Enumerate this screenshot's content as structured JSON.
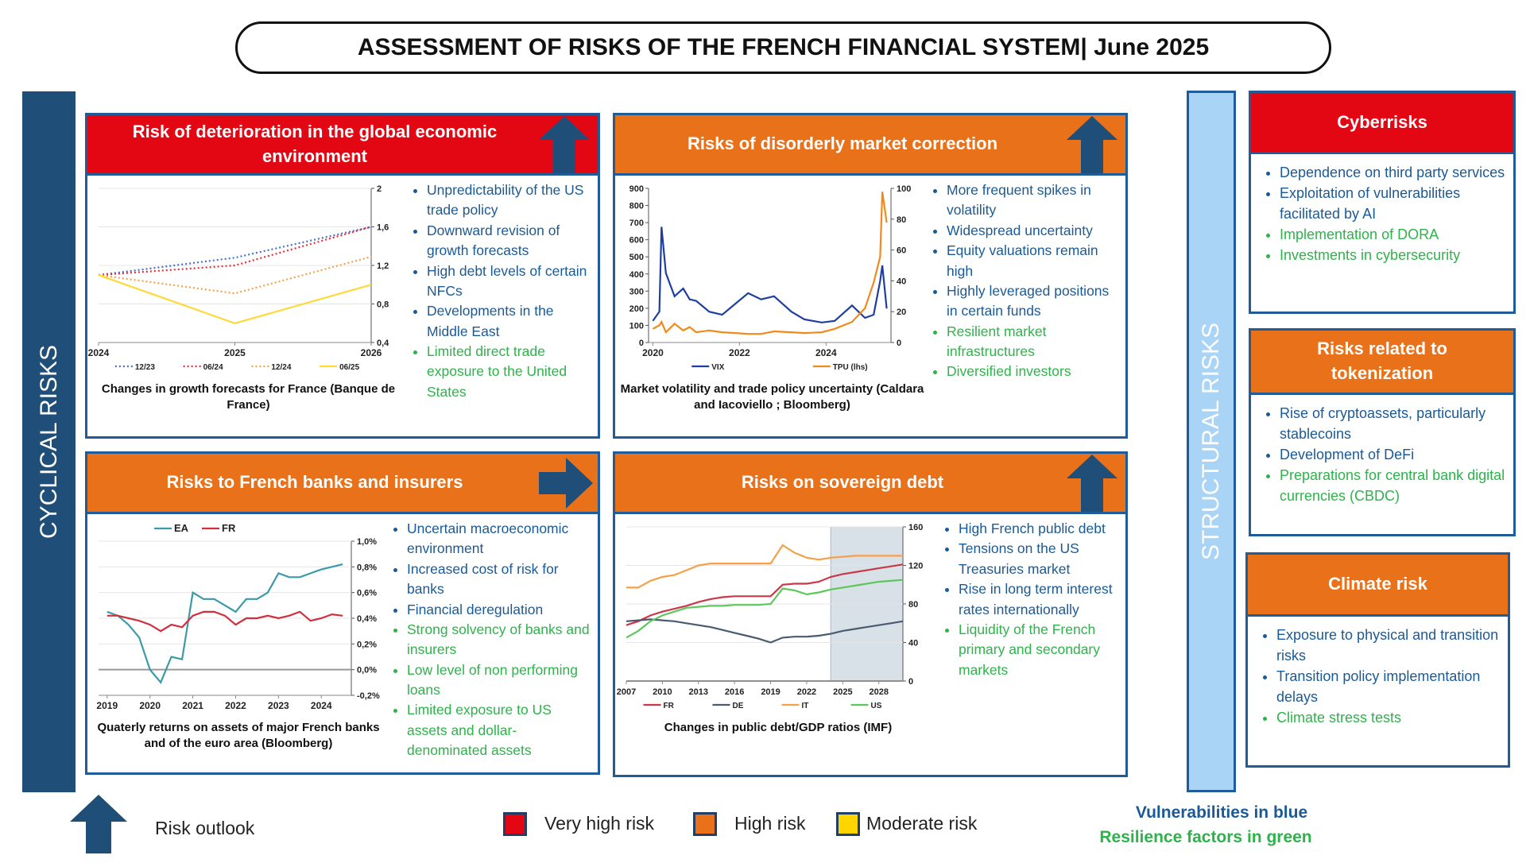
{
  "header": {
    "title": "ASSESSMENT OF RISKS OF THE FRENCH FINANCIAL SYSTEM| June 2025"
  },
  "sidebars": {
    "cyclical": "CYCLICAL RISKS",
    "structural": "STRUCTURAL RISKS"
  },
  "kinds": {
    "vulnerability": {
      "label": "Vulnerabilities in blue",
      "color": "#1a5a96"
    },
    "resilience": {
      "label": "Resilience factors in green",
      "color": "#2db34a"
    }
  },
  "levels": [
    {
      "label": "Very high risk",
      "color": "#e30613"
    },
    {
      "label": "High risk",
      "color": "#e8711a"
    },
    {
      "label": "Moderate risk",
      "color": "#ffd500"
    }
  ],
  "outlook_label": "Risk outlook",
  "panels": [
    {
      "title": "Risk of deterioration in the global economic environment",
      "color": "#e30613",
      "outlook": "up",
      "chart": {
        "type": "line",
        "x": [
          2024,
          2025,
          2026
        ],
        "xlim": [
          2024,
          2026
        ],
        "xticks": [
          2024,
          2025,
          2026
        ],
        "ylim": [
          0.4,
          2
        ],
        "yticks": [
          {
            "value": 0.4,
            "label": "0,4"
          },
          {
            "value": 0.8,
            "label": "0,8"
          },
          {
            "value": 1.2,
            "label": "1,2"
          },
          {
            "value": 1.6,
            "label": "1,6"
          },
          2
        ],
        "y_axis_side": "right",
        "grid": true,
        "legend": "bottom",
        "series": [
          {
            "name": "12/23",
            "color": "#4472c4",
            "dash": true,
            "values": [
              1.1,
              1.28,
              1.6
            ]
          },
          {
            "name": "06/24",
            "color": "#e0303a",
            "dash": true,
            "values": [
              1.1,
              1.2,
              1.6
            ]
          },
          {
            "name": "12/24",
            "color": "#f5a04a",
            "dash": true,
            "values": [
              1.1,
              0.91,
              1.29
            ]
          },
          {
            "name": "06/25",
            "color": "#ffd93a",
            "dash": false,
            "values": [
              1.1,
              0.6,
              1.0
            ]
          }
        ]
      },
      "caption": "Changes in growth forecasts for France (Banque de France)",
      "items": [
        {
          "text": "Unpredictability of the US trade policy",
          "kind": "vulnerability"
        },
        {
          "text": "Downward revision of growth forecasts",
          "kind": "vulnerability"
        },
        {
          "text": "High debt levels of certain NFCs",
          "kind": "vulnerability"
        },
        {
          "text": "Developments in the Middle East",
          "kind": "vulnerability"
        },
        {
          "text": "Limited direct trade exposure to the United States",
          "kind": "resilience"
        }
      ]
    },
    {
      "title": "Risks of disorderly market correction",
      "color": "#e8711a",
      "outlook": "up",
      "chart": {
        "type": "line",
        "x": [
          2020.0,
          2020.15,
          2020.2,
          2020.3,
          2020.5,
          2020.7,
          2020.85,
          2021.0,
          2021.3,
          2021.6,
          2021.9,
          2022.2,
          2022.5,
          2022.8,
          2023.2,
          2023.5,
          2023.9,
          2024.2,
          2024.6,
          2024.9,
          2025.1,
          2025.25,
          2025.3,
          2025.4
        ],
        "xlim": [
          2019.9,
          2025.5
        ],
        "xticks": [
          2020,
          2022,
          2024
        ],
        "ylim": [
          0,
          900
        ],
        "yticks": [
          0,
          100,
          200,
          300,
          400,
          500,
          600,
          700,
          800,
          900
        ],
        "y2lim": [
          0,
          100
        ],
        "y2ticks": [
          0,
          20,
          40,
          60,
          80,
          100
        ],
        "y_axis_side": "left",
        "grid": false,
        "legend": "bottom",
        "series": [
          {
            "name": "VIX",
            "color": "#1f3fa0",
            "axis": "y2",
            "dash": false,
            "values": [
              14,
              20,
              75,
              45,
              30,
              35,
              28,
              27,
              20,
              18,
              25,
              32,
              28,
              30,
              20,
              15,
              13,
              14,
              24,
              16,
              18,
              40,
              50,
              22
            ]
          },
          {
            "name": "TPU (lhs)",
            "color": "#f08a1c",
            "dash": false,
            "values": [
              80,
              100,
              120,
              60,
              110,
              70,
              90,
              60,
              70,
              60,
              55,
              50,
              50,
              65,
              60,
              55,
              60,
              80,
              120,
              200,
              350,
              500,
              880,
              700
            ]
          }
        ]
      },
      "caption": "Market volatility and trade policy uncertainty (Caldara and Iacoviello ; Bloomberg)",
      "items": [
        {
          "text": "More frequent spikes in volatility",
          "kind": "vulnerability"
        },
        {
          "text": "Widespread uncertainty",
          "kind": "vulnerability"
        },
        {
          "text": "Equity valuations remain high",
          "kind": "vulnerability"
        },
        {
          "text": "Highly leveraged positions in certain funds",
          "kind": "vulnerability"
        },
        {
          "text": "Resilient market infrastructures",
          "kind": "resilience"
        },
        {
          "text": "Diversified investors",
          "kind": "resilience"
        }
      ]
    },
    {
      "title": "Risks to French banks and insurers",
      "color": "#e8711a",
      "outlook": "right",
      "chart": {
        "type": "line",
        "x": [
          2019,
          2019.25,
          2019.5,
          2019.75,
          2020,
          2020.25,
          2020.5,
          2020.75,
          2021,
          2021.25,
          2021.5,
          2021.75,
          2022,
          2022.25,
          2022.5,
          2022.75,
          2023,
          2023.25,
          2023.5,
          2023.75,
          2024,
          2024.25,
          2024.5
        ],
        "xlim": [
          2018.8,
          2024.7
        ],
        "xticks": [
          2019,
          2020,
          2021,
          2022,
          2023,
          2024
        ],
        "ylim": [
          -0.2,
          1.0
        ],
        "yticks": [
          {
            "value": -0.2,
            "label": "-0,2%"
          },
          {
            "value": 0,
            "label": "0,0%"
          },
          {
            "value": 0.2,
            "label": "0,2%"
          },
          {
            "value": 0.4,
            "label": "0,4%"
          },
          {
            "value": 0.6,
            "label": "0,6%"
          },
          {
            "value": 0.8,
            "label": "0,8%"
          },
          {
            "value": 1.0,
            "label": "1,0%"
          }
        ],
        "y_axis_side": "right",
        "grid": true,
        "legend": "top",
        "series": [
          {
            "name": "EA",
            "color": "#3a9aa8",
            "dash": false,
            "values": [
              0.45,
              0.42,
              0.35,
              0.25,
              0.0,
              -0.1,
              0.1,
              0.08,
              0.6,
              0.55,
              0.55,
              0.5,
              0.45,
              0.55,
              0.55,
              0.6,
              0.75,
              0.72,
              0.72,
              0.75,
              0.78,
              0.8,
              0.82
            ]
          },
          {
            "name": "FR",
            "color": "#d0303e",
            "dash": false,
            "values": [
              0.42,
              0.42,
              0.4,
              0.38,
              0.35,
              0.3,
              0.35,
              0.33,
              0.42,
              0.45,
              0.45,
              0.42,
              0.35,
              0.4,
              0.4,
              0.42,
              0.4,
              0.42,
              0.45,
              0.38,
              0.4,
              0.43,
              0.42
            ]
          }
        ]
      },
      "caption": "Quaterly returns on assets of major French banks and of the euro area (Bloomberg)",
      "items": [
        {
          "text": "Uncertain macroeconomic environment",
          "kind": "vulnerability"
        },
        {
          "text": "Increased cost of risk for banks",
          "kind": "vulnerability"
        },
        {
          "text": "Financial deregulation",
          "kind": "vulnerability"
        },
        {
          "text": "Strong solvency of banks and insurers",
          "kind": "resilience"
        },
        {
          "text": "Low level of non performing loans",
          "kind": "resilience"
        },
        {
          "text": "Limited exposure to US assets and dollar-denominated assets",
          "kind": "resilience"
        }
      ]
    },
    {
      "title": "Risks on sovereign debt",
      "color": "#e8711a",
      "outlook": "up",
      "chart": {
        "type": "line",
        "x": [
          2007,
          2008,
          2009,
          2010,
          2011,
          2012,
          2013,
          2014,
          2015,
          2016,
          2017,
          2018,
          2019,
          2020,
          2021,
          2022,
          2023,
          2024,
          2025,
          2026,
          2027,
          2028,
          2029,
          2030
        ],
        "xlim": [
          2007,
          2030
        ],
        "xticks": [
          2007,
          2010,
          2013,
          2016,
          2019,
          2022,
          2025,
          2028
        ],
        "ylim": [
          0,
          160
        ],
        "yticks": [
          0,
          40,
          80,
          120,
          160
        ],
        "y_axis_side": "right",
        "grid": true,
        "legend": "bottom",
        "shade": [
          2024,
          2030
        ],
        "series": [
          {
            "name": "FR",
            "color": "#c8384a",
            "dash": false,
            "values": [
              58,
              62,
              68,
              72,
              75,
              78,
              82,
              85,
              87,
              88,
              88,
              88,
              88,
              100,
              101,
              101,
              103,
              108,
              111,
              113,
              115,
              117,
              119,
              121
            ]
          },
          {
            "name": "DE",
            "color": "#4a5a70",
            "dash": false,
            "values": [
              62,
              63,
              64,
              63,
              62,
              60,
              58,
              56,
              53,
              50,
              47,
              44,
              40,
              45,
              46,
              46,
              47,
              49,
              52,
              54,
              56,
              58,
              60,
              62
            ]
          },
          {
            "name": "IT",
            "color": "#f5a04a",
            "dash": false,
            "values": [
              97,
              97,
              104,
              108,
              110,
              115,
              120,
              122,
              122,
              122,
              122,
              122,
              122,
              141,
              133,
              128,
              126,
              128,
              129,
              130,
              130,
              130,
              130,
              130
            ]
          },
          {
            "name": "US",
            "color": "#5cc85c",
            "dash": false,
            "values": [
              45,
              52,
              62,
              68,
              72,
              76,
              77,
              78,
              78,
              79,
              79,
              79,
              80,
              96,
              94,
              90,
              92,
              95,
              97,
              99,
              101,
              103,
              104,
              105
            ]
          }
        ]
      },
      "caption": "Changes in public debt/GDP ratios (IMF)",
      "items": [
        {
          "text": "High French public debt",
          "kind": "vulnerability"
        },
        {
          "text": "Tensions on the US Treasuries market",
          "kind": "vulnerability"
        },
        {
          "text": "Rise in long term interest rates internationally",
          "kind": "vulnerability"
        },
        {
          "text": "Liquidity of the French primary and secondary markets",
          "kind": "resilience"
        }
      ]
    }
  ],
  "structural_panels": [
    {
      "title": "Cyberrisks",
      "color": "#e30613",
      "items": [
        {
          "text": "Dependence on third party services",
          "kind": "vulnerability"
        },
        {
          "text": "Exploitation of vulnerabilities facilitated by AI",
          "kind": "vulnerability"
        },
        {
          "text": "Implementation of DORA",
          "kind": "resilience"
        },
        {
          "text": "Investments in cybersecurity",
          "kind": "resilience"
        }
      ]
    },
    {
      "title": "Risks related to tokenization",
      "color": "#e8711a",
      "items": [
        {
          "text": "Rise of cryptoassets, particularly stablecoins",
          "kind": "vulnerability"
        },
        {
          "text": "Development of DeFi",
          "kind": "vulnerability"
        },
        {
          "text": "Preparations for central bank digital currencies (CBDC)",
          "kind": "resilience"
        }
      ]
    },
    {
      "title": "Climate risk",
      "color": "#e8711a",
      "items": [
        {
          "text": "Exposure to physical and transition risks",
          "kind": "vulnerability"
        },
        {
          "text": "Transition policy implementation delays",
          "kind": "vulnerability"
        },
        {
          "text": "Climate stress tests",
          "kind": "resilience"
        }
      ]
    }
  ]
}
